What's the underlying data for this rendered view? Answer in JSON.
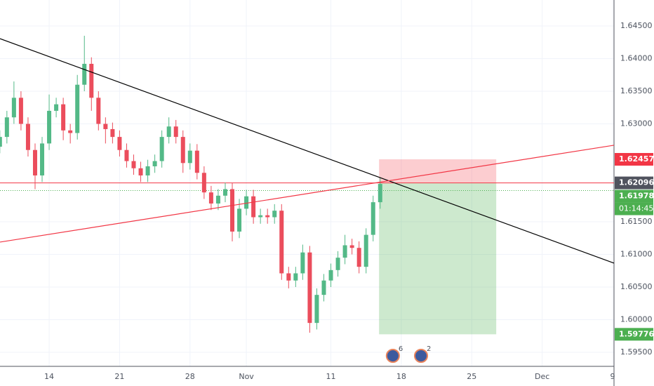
{
  "chart_data": {
    "type": "candlestick",
    "x": [
      -3.5,
      -3,
      -2.5,
      -2,
      -1.5,
      -1,
      -0.5,
      0,
      0.5,
      1,
      1.5,
      2,
      2.5,
      3,
      3.5,
      4,
      4.5,
      5,
      5.5,
      6,
      6.5,
      7,
      7.5,
      8,
      8.5,
      9,
      9.5,
      10,
      10.5,
      11,
      11.5,
      12,
      12.5,
      13,
      13.5,
      14,
      14.5,
      15,
      15.5,
      16,
      16.5,
      17,
      17.5,
      18,
      18.5,
      19,
      19.5,
      20,
      20.5,
      21,
      21.5,
      22,
      22.5,
      23,
      23.5
    ],
    "open": [
      1.6265,
      1.628,
      1.631,
      1.634,
      1.63,
      1.626,
      1.6221,
      1.627,
      1.632,
      1.633,
      1.629,
      1.6286,
      1.636,
      1.6392,
      1.634,
      1.63,
      1.6292,
      1.628,
      1.626,
      1.6243,
      1.6232,
      1.6221,
      1.6235,
      1.6243,
      1.628,
      1.6296,
      1.628,
      1.624,
      1.6259,
      1.6225,
      1.6195,
      1.6178,
      1.619,
      1.62,
      1.6135,
      1.617,
      1.6189,
      1.6157,
      1.616,
      1.6157,
      1.6167,
      1.6071,
      1.606,
      1.6071,
      1.6103,
      1.5995,
      1.6038,
      1.606,
      1.6076,
      1.6095,
      1.6114,
      1.611,
      1.6081,
      1.613,
      1.618
    ],
    "high": [
      1.629,
      1.632,
      1.6365,
      1.635,
      1.631,
      1.627,
      1.628,
      1.6345,
      1.634,
      1.634,
      1.63,
      1.6375,
      1.6435,
      1.6402,
      1.635,
      1.631,
      1.6302,
      1.629,
      1.627,
      1.6253,
      1.6242,
      1.6245,
      1.6253,
      1.629,
      1.631,
      1.6306,
      1.629,
      1.627,
      1.6269,
      1.6235,
      1.6205,
      1.62,
      1.621,
      1.621,
      1.6185,
      1.6199,
      1.6199,
      1.617,
      1.617,
      1.6177,
      1.6177,
      1.6081,
      1.6081,
      1.6115,
      1.6113,
      1.6048,
      1.607,
      1.6086,
      1.6105,
      1.613,
      1.6124,
      1.612,
      1.614,
      1.619,
      1.6218
    ],
    "low": [
      1.6255,
      1.627,
      1.63,
      1.629,
      1.625,
      1.62,
      1.6211,
      1.626,
      1.631,
      1.6275,
      1.627,
      1.6276,
      1.635,
      1.632,
      1.629,
      1.627,
      1.627,
      1.625,
      1.6233,
      1.6222,
      1.6211,
      1.6211,
      1.6225,
      1.6233,
      1.627,
      1.627,
      1.6225,
      1.623,
      1.6215,
      1.6185,
      1.6168,
      1.6168,
      1.618,
      1.612,
      1.6125,
      1.616,
      1.6147,
      1.6147,
      1.6147,
      1.6147,
      1.6061,
      1.6048,
      1.605,
      1.6061,
      1.598,
      1.5985,
      1.6028,
      1.605,
      1.6066,
      1.6085,
      1.61,
      1.6071,
      1.6071,
      1.612,
      1.617
    ],
    "close": [
      1.628,
      1.631,
      1.634,
      1.63,
      1.626,
      1.6221,
      1.627,
      1.632,
      1.633,
      1.629,
      1.6286,
      1.636,
      1.6392,
      1.634,
      1.63,
      1.6292,
      1.628,
      1.626,
      1.6243,
      1.6232,
      1.6221,
      1.6235,
      1.6243,
      1.628,
      1.6296,
      1.628,
      1.624,
      1.6259,
      1.6225,
      1.6195,
      1.6178,
      1.619,
      1.62,
      1.6135,
      1.617,
      1.6189,
      1.6157,
      1.616,
      1.6157,
      1.6167,
      1.6071,
      1.606,
      1.6071,
      1.6103,
      1.5995,
      1.6038,
      1.606,
      1.6076,
      1.6095,
      1.6114,
      1.611,
      1.6081,
      1.613,
      1.618,
      1.6208
    ],
    "up_color": "#53b987",
    "down_color": "#eb4d5c",
    "xlim": [
      -3.49,
      40.1
    ],
    "ylim": [
      1.59285,
      1.64898
    ],
    "xticks": [
      {
        "value": 0,
        "label": "14"
      },
      {
        "value": 5,
        "label": "21"
      },
      {
        "value": 10,
        "label": "28"
      },
      {
        "value": 14,
        "label": "Nov"
      },
      {
        "value": 20,
        "label": "11"
      },
      {
        "value": 25,
        "label": "18"
      },
      {
        "value": 30,
        "label": "25"
      },
      {
        "value": 35,
        "label": "Dec"
      },
      {
        "value": 40,
        "label": "9"
      }
    ],
    "yticks": [
      {
        "value": 1.595,
        "label": "1.59500"
      },
      {
        "value": 1.6,
        "label": "1.60000"
      },
      {
        "value": 1.605,
        "label": "1.60500"
      },
      {
        "value": 1.61,
        "label": "1.61000"
      },
      {
        "value": 1.615,
        "label": "1.61500"
      },
      {
        "value": 1.63,
        "label": "1.63000"
      },
      {
        "value": 1.635,
        "label": "1.63500"
      },
      {
        "value": 1.64,
        "label": "1.64000"
      },
      {
        "value": 1.645,
        "label": "1.64500"
      }
    ],
    "trendlines": [
      {
        "color": "#000000",
        "x": [
          -3.49,
          40.1
        ],
        "y": [
          1.64306,
          1.60866
        ]
      },
      {
        "color": "#f23645",
        "x": [
          -3.49,
          40.1
        ],
        "y": [
          1.61189,
          1.62673
        ]
      }
    ],
    "position": {
      "x": [
        23.42,
        31.74
      ],
      "stop": 1.62457,
      "entry": 1.62096,
      "target": 1.59776
    },
    "last_price": 1.61978,
    "countdown": "01:14:45",
    "events": [
      {
        "x": 24.4,
        "count": 6
      },
      {
        "x": 26.4,
        "count": 2
      }
    ]
  }
}
